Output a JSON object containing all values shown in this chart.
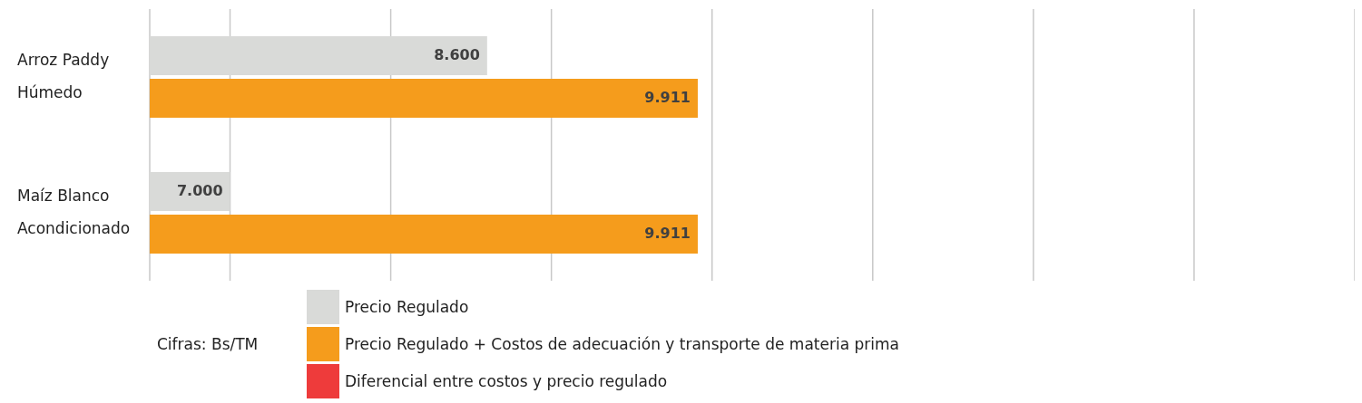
{
  "chart_data": {
    "type": "bar",
    "orientation": "horizontal",
    "categories": [
      "Arroz Paddy Húmedo",
      "Maíz Blanco Acondicionado"
    ],
    "series": [
      {
        "name": "Precio Regulado",
        "color": "#d9dad8",
        "values": [
          8600,
          7000
        ],
        "value_labels": [
          "8.600",
          "7.000"
        ]
      },
      {
        "name": "Precio Regulado + Costos de adecuación y transporte de materia prima",
        "color": "#f59c1c",
        "values": [
          9911,
          9911
        ],
        "value_labels": [
          "9.911",
          "9.911"
        ]
      },
      {
        "name": "Diferencial entre costos y precio regulado",
        "color": "#ee3b3b",
        "values": [
          null,
          null
        ]
      }
    ],
    "xlim": [
      6500,
      14000
    ],
    "xticks": [
      {
        "value": 7000,
        "label": null
      },
      {
        "value": 8000,
        "label": null
      },
      {
        "value": 9000,
        "label": null
      },
      {
        "value": 10000,
        "label": null
      },
      {
        "value": 11000,
        "label": null
      },
      {
        "value": 12000,
        "label": null
      },
      {
        "value": 13000,
        "label": null
      },
      {
        "value": 14000,
        "label": null
      }
    ],
    "tick_labels": "y",
    "grid": "x",
    "legend": "bottom",
    "annotations": [
      "Cifras: Bs/TM"
    ]
  }
}
